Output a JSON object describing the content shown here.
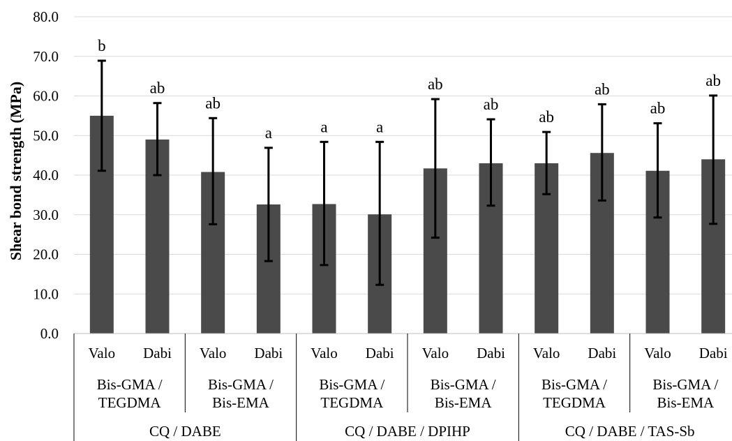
{
  "chart_data": {
    "type": "bar",
    "ylabel": "Shear bond strength (MPa)",
    "ylim": [
      0,
      80
    ],
    "yticks": [
      "0.0",
      "10.0",
      "20.0",
      "30.0",
      "40.0",
      "50.0",
      "60.0",
      "70.0",
      "80.0"
    ],
    "grid": true,
    "bar_color": "#4a4a4a",
    "categories": [
      "Valo",
      "Dabi",
      "Valo",
      "Dabi",
      "Valo",
      "Dabi",
      "Valo",
      "Dabi",
      "Valo",
      "Dabi",
      "Valo",
      "Dabi"
    ],
    "values": [
      55.0,
      49.0,
      40.8,
      32.6,
      32.7,
      30.1,
      41.7,
      43.0,
      43.0,
      45.6,
      41.1,
      44.0
    ],
    "error_upper": [
      68.9,
      58.2,
      54.4,
      46.9,
      48.4,
      48.4,
      59.2,
      54.1,
      50.9,
      57.9,
      53.1,
      60.1
    ],
    "error_lower": [
      41.1,
      40.0,
      27.6,
      18.3,
      17.3,
      12.3,
      24.2,
      32.3,
      35.2,
      33.6,
      29.3,
      27.7
    ],
    "significance": [
      "b",
      "ab",
      "ab",
      "a",
      "a",
      "a",
      "ab",
      "ab",
      "ab",
      "ab",
      "ab",
      "ab"
    ],
    "monomer_groups": [
      [
        "Bis-GMA /",
        "TEGDMA"
      ],
      [
        "Bis-GMA /",
        "Bis-EMA"
      ],
      [
        "Bis-GMA /",
        "TEGDMA"
      ],
      [
        "Bis-GMA /",
        "Bis-EMA"
      ],
      [
        "Bis-GMA /",
        "TEGDMA"
      ],
      [
        "Bis-GMA /",
        "Bis-EMA"
      ]
    ],
    "initiator_groups": [
      "CQ / DABE",
      "CQ / DABE / DPIHP",
      "CQ / DABE / TAS-Sb"
    ]
  }
}
